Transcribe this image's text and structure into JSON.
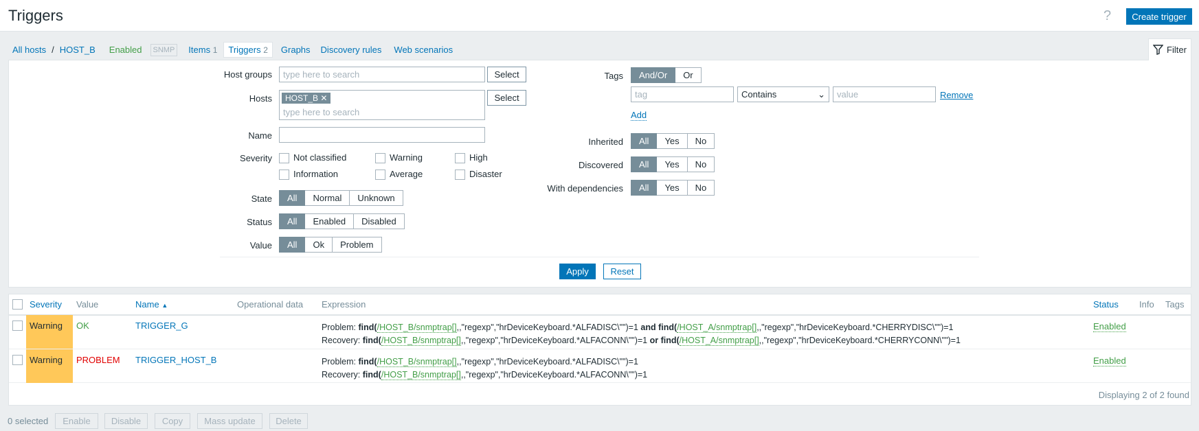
{
  "header": {
    "title": "Triggers",
    "help": "?",
    "create_button": "Create trigger"
  },
  "nav": {
    "all_hosts": "All hosts",
    "separator": "/",
    "host": "HOST_B",
    "status": "Enabled",
    "snmp": "SNMP",
    "items": "Items",
    "items_count": "1",
    "triggers": "Triggers",
    "triggers_count": "2",
    "graphs": "Graphs",
    "discovery": "Discovery rules",
    "web": "Web scenarios",
    "filter_tab": "Filter"
  },
  "filter": {
    "host_groups_label": "Host groups",
    "host_groups_placeholder": "type here to search",
    "select": "Select",
    "hosts_label": "Hosts",
    "hosts_chip": "HOST_B",
    "hosts_placeholder": "type here to search",
    "name_label": "Name",
    "name_value": "",
    "severity_label": "Severity",
    "severities": [
      "Not classified",
      "Warning",
      "High",
      "Information",
      "Average",
      "Disaster"
    ],
    "state_label": "State",
    "state_options": [
      "All",
      "Normal",
      "Unknown"
    ],
    "status_label": "Status",
    "status_options": [
      "All",
      "Enabled",
      "Disabled"
    ],
    "value_label": "Value",
    "value_options": [
      "All",
      "Ok",
      "Problem"
    ],
    "tags_label": "Tags",
    "tags_options": [
      "And/Or",
      "Or"
    ],
    "tag_placeholder": "tag",
    "operator": "Contains",
    "value_placeholder": "value",
    "remove": "Remove",
    "add": "Add",
    "inherited_label": "Inherited",
    "discovered_label": "Discovered",
    "dependencies_label": "With dependencies",
    "yn_options": [
      "All",
      "Yes",
      "No"
    ],
    "apply": "Apply",
    "reset": "Reset"
  },
  "table": {
    "columns": {
      "severity": "Severity",
      "value": "Value",
      "name": "Name",
      "sort": "▲",
      "opdata": "Operational data",
      "expression": "Expression",
      "status": "Status",
      "info": "Info",
      "tags": "Tags"
    },
    "rows": [
      {
        "severity": "Warning",
        "value": "OK",
        "name": "TRIGGER_G",
        "status": "Enabled",
        "problem": {
          "label": "Problem:",
          "parts": [
            "/HOST_B/snmptrap[]",
            ",,\"regexp\",\"hrDeviceKeyboard.*ALFADISC\\\"\")=1",
            " and ",
            "/HOST_A/snmptrap[]",
            ",,\"regexp\",\"hrDeviceKeyboard.*CHERRYDISC\\\"\")=1"
          ]
        },
        "recovery": {
          "label": "Recovery:",
          "parts": [
            "/HOST_B/snmptrap[]",
            ",,\"regexp\",\"hrDeviceKeyboard.*ALFACONN\\\"\")=1",
            " or ",
            "/HOST_A/snmptrap[]",
            ",,\"regexp\",\"hrDeviceKeyboard.*CHERRYCONN\\\"\")=1"
          ]
        }
      },
      {
        "severity": "Warning",
        "value": "PROBLEM",
        "name": "TRIGGER_HOST_B",
        "status": "Enabled",
        "problem": {
          "label": "Problem:",
          "parts": [
            "/HOST_B/snmptrap[]",
            ",,\"regexp\",\"hrDeviceKeyboard.*ALFADISC\\\"\")=1"
          ]
        },
        "recovery": {
          "label": "Recovery:",
          "parts": [
            "/HOST_B/snmptrap[]",
            ",,\"regexp\",\"hrDeviceKeyboard.*ALFACONN\\\"\")=1"
          ]
        }
      }
    ],
    "footer": "Displaying 2 of 2 found"
  },
  "bottom": {
    "selected": "0 selected",
    "enable": "Enable",
    "disable": "Disable",
    "copy": "Copy",
    "mass_update": "Mass update",
    "delete": "Delete"
  },
  "colors": {
    "accent": "#0275b8",
    "warning": "#ffc859",
    "ok": "#429e47",
    "problem": "#e10000"
  }
}
